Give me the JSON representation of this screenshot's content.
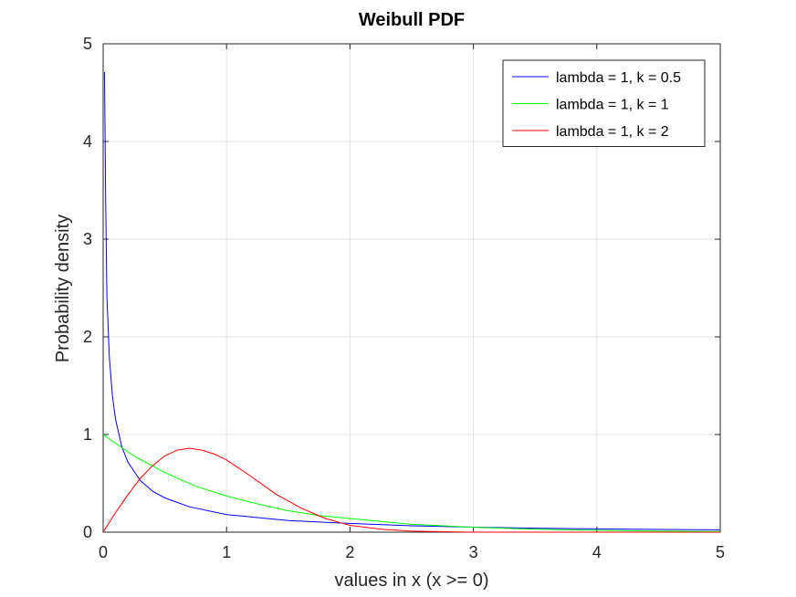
{
  "chart_data": {
    "type": "line",
    "title": "Weibull PDF",
    "xlabel": "values in x (x >= 0)",
    "ylabel": "Probability density",
    "xlim": [
      0,
      5
    ],
    "ylim": [
      0,
      5
    ],
    "x_ticks": [
      0,
      1,
      2,
      3,
      4,
      5
    ],
    "y_ticks": [
      0,
      1,
      2,
      3,
      4,
      5
    ],
    "grid": true,
    "legend_position": "top-right",
    "series": [
      {
        "name": "lambda = 1, k = 0.5",
        "color": "#0000ff",
        "x": [
          0.011,
          0.02,
          0.03,
          0.05,
          0.075,
          0.1,
          0.15,
          0.2,
          0.3,
          0.4,
          0.5,
          0.7,
          1.0,
          1.5,
          2.0,
          2.5,
          3.0,
          3.5,
          4.0,
          4.5,
          5.0
        ],
        "y": [
          4.71,
          3.44,
          2.42,
          1.79,
          1.4,
          1.16,
          0.88,
          0.72,
          0.53,
          0.42,
          0.35,
          0.26,
          0.18,
          0.12,
          0.09,
          0.065,
          0.051,
          0.041,
          0.034,
          0.028,
          0.024
        ]
      },
      {
        "name": "lambda = 1, k = 1",
        "color": "#00ff00",
        "x": [
          0,
          0.25,
          0.5,
          0.75,
          1.0,
          1.25,
          1.5,
          1.75,
          2.0,
          2.5,
          3.0,
          3.5,
          4.0,
          4.5,
          5.0
        ],
        "y": [
          1.0,
          0.78,
          0.61,
          0.47,
          0.37,
          0.29,
          0.22,
          0.17,
          0.14,
          0.08,
          0.05,
          0.03,
          0.02,
          0.01,
          0.007
        ]
      },
      {
        "name": "lambda = 1, k = 2",
        "color": "#ff0000",
        "x": [
          0,
          0.1,
          0.2,
          0.3,
          0.4,
          0.5,
          0.6,
          0.7,
          0.8,
          0.9,
          1.0,
          1.2,
          1.4,
          1.6,
          1.8,
          2.0,
          2.25,
          2.5,
          3.0,
          3.5,
          4.0,
          5.0
        ],
        "y": [
          0,
          0.2,
          0.38,
          0.55,
          0.68,
          0.78,
          0.84,
          0.86,
          0.84,
          0.8,
          0.74,
          0.57,
          0.39,
          0.25,
          0.14,
          0.07,
          0.03,
          0.01,
          0.0,
          0.0,
          0.0,
          0.0
        ]
      }
    ]
  }
}
